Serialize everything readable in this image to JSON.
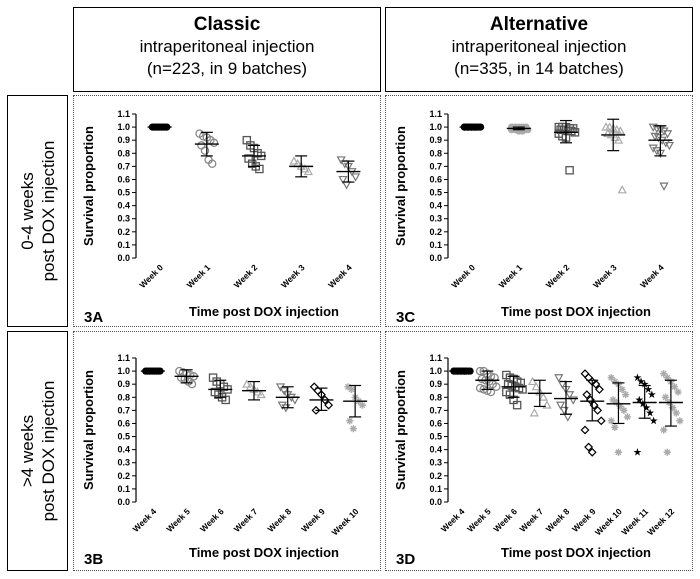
{
  "headers": {
    "classic": {
      "title": "Classic",
      "line1": "intraperitoneal injection",
      "line2": "(n=223, in 9 batches)"
    },
    "alternative": {
      "title": "Alternative",
      "line1": "intraperitoneal injection",
      "line2": "(n=335, in 14 batches)"
    }
  },
  "row_labels": {
    "top": {
      "line1": "0-4 weeks",
      "line2": "post DOX injection"
    },
    "bottom": {
      "line1": ">4 weeks",
      "line2": "post DOX injection"
    }
  },
  "chart_data": [
    {
      "id": "3A",
      "type": "scatter",
      "ylabel": "Survival proportion",
      "xlabel": "Time post DOX injection",
      "ylim": [
        0,
        1.1
      ],
      "yticks": [
        "0.0",
        "0.1",
        "0.2",
        "0.3",
        "0.4",
        "0.5",
        "0.6",
        "0.7",
        "0.8",
        "0.9",
        "1.0",
        "1.1"
      ],
      "categories": [
        "Week 0",
        "Week 1",
        "Week 2",
        "Week 3",
        "Week 4"
      ],
      "groups": [
        {
          "marker": "circle-filled",
          "color": "#000000",
          "mean": 1.0,
          "sd_low": 1.0,
          "sd_high": 1.0,
          "points": [
            1,
            1,
            1,
            1,
            1,
            1,
            1,
            1,
            1
          ]
        },
        {
          "marker": "circle-open",
          "color": "#888888",
          "mean": 0.87,
          "sd_low": 0.78,
          "sd_high": 0.96,
          "points": [
            0.95,
            0.93,
            0.92,
            0.9,
            0.88,
            0.86,
            0.82,
            0.75,
            0.72
          ]
        },
        {
          "marker": "square-open",
          "color": "#555555",
          "mean": 0.78,
          "sd_low": 0.7,
          "sd_high": 0.86,
          "points": [
            0.9,
            0.86,
            0.84,
            0.8,
            0.78,
            0.76,
            0.72,
            0.7,
            0.68
          ]
        },
        {
          "marker": "triangle-open",
          "color": "#aaaaaa",
          "mean": 0.7,
          "sd_low": 0.62,
          "sd_high": 0.78,
          "points": [
            0.74,
            0.72,
            0.7,
            0.68,
            0.66
          ]
        },
        {
          "marker": "triangle-down-open",
          "color": "#777777",
          "mean": 0.66,
          "sd_low": 0.58,
          "sd_high": 0.74,
          "points": [
            0.75,
            0.72,
            0.7,
            0.66,
            0.62,
            0.6,
            0.56
          ]
        }
      ]
    },
    {
      "id": "3C",
      "type": "scatter",
      "ylabel": "Survival proportion",
      "xlabel": "Time post DOX injection",
      "ylim": [
        0,
        1.1
      ],
      "yticks": [
        "0.0",
        "0.1",
        "0.2",
        "0.3",
        "0.4",
        "0.5",
        "0.6",
        "0.7",
        "0.8",
        "0.9",
        "1.0",
        "1.1"
      ],
      "categories": [
        "Week 0",
        "Week 1",
        "Week 2",
        "Week 3",
        "Week 4"
      ],
      "groups": [
        {
          "marker": "circle-filled",
          "color": "#000000",
          "mean": 1.0,
          "sd_low": 1.0,
          "sd_high": 1.0,
          "points": [
            1,
            1,
            1,
            1,
            1,
            1,
            1,
            1,
            1,
            1,
            1,
            1,
            1,
            1
          ]
        },
        {
          "marker": "circle-filled",
          "color": "#aaaaaa",
          "mean": 0.99,
          "sd_low": 0.98,
          "sd_high": 1.0,
          "points": [
            1,
            1,
            1,
            1,
            1,
            0.99,
            0.99,
            0.99,
            0.98,
            0.98,
            0.98,
            0.98,
            0.97,
            0.97
          ]
        },
        {
          "marker": "square-open",
          "color": "#555555",
          "mean": 0.96,
          "sd_low": 0.88,
          "sd_high": 1.05,
          "points": [
            1,
            1,
            1,
            0.99,
            0.99,
            0.98,
            0.98,
            0.97,
            0.97,
            0.96,
            0.95,
            0.93,
            0.92,
            0.67
          ]
        },
        {
          "marker": "triangle-open",
          "color": "#aaaaaa",
          "mean": 0.94,
          "sd_low": 0.82,
          "sd_high": 1.06,
          "points": [
            1,
            1,
            0.99,
            0.98,
            0.97,
            0.95,
            0.94,
            0.92,
            0.9,
            0.52
          ]
        },
        {
          "marker": "triangle-down-open",
          "color": "#777777",
          "mean": 0.9,
          "sd_low": 0.78,
          "sd_high": 1.01,
          "points": [
            1,
            0.99,
            0.98,
            0.97,
            0.95,
            0.93,
            0.92,
            0.9,
            0.88,
            0.86,
            0.84,
            0.82,
            0.8,
            0.55
          ]
        }
      ]
    },
    {
      "id": "3B",
      "type": "scatter",
      "ylabel": "Survival proportion",
      "xlabel": "Time post DOX injection",
      "ylim": [
        0,
        1.1
      ],
      "yticks": [
        "0.0",
        "0.1",
        "0.2",
        "0.3",
        "0.4",
        "0.5",
        "0.6",
        "0.7",
        "0.8",
        "0.9",
        "1.0",
        "1.1"
      ],
      "categories": [
        "Week 4",
        "Week 5",
        "Week 6",
        "Week 7",
        "Week 8",
        "Week 9",
        "Week 10"
      ],
      "groups": [
        {
          "marker": "circle-filled",
          "color": "#000000",
          "mean": 1.0,
          "sd_low": 1.0,
          "sd_high": 1.0,
          "points": [
            1,
            1,
            1,
            1,
            1,
            1,
            1,
            1,
            1
          ]
        },
        {
          "marker": "circle-open",
          "color": "#888888",
          "mean": 0.96,
          "sd_low": 0.91,
          "sd_high": 1.01,
          "points": [
            1,
            0.99,
            0.98,
            0.97,
            0.96,
            0.95,
            0.94,
            0.92,
            0.9
          ]
        },
        {
          "marker": "square-open",
          "color": "#555555",
          "mean": 0.86,
          "sd_low": 0.8,
          "sd_high": 0.93,
          "points": [
            0.95,
            0.92,
            0.9,
            0.88,
            0.86,
            0.84,
            0.82,
            0.8,
            0.78
          ]
        },
        {
          "marker": "triangle-open",
          "color": "#aaaaaa",
          "mean": 0.85,
          "sd_low": 0.78,
          "sd_high": 0.92,
          "points": [
            0.9,
            0.88,
            0.86,
            0.84,
            0.82
          ]
        },
        {
          "marker": "triangle-down-open",
          "color": "#777777",
          "mean": 0.8,
          "sd_low": 0.72,
          "sd_high": 0.88,
          "points": [
            0.88,
            0.85,
            0.82,
            0.8,
            0.78,
            0.74,
            0.72
          ]
        },
        {
          "marker": "diamond-open",
          "color": "#000000",
          "mean": 0.78,
          "sd_low": 0.7,
          "sd_high": 0.87,
          "points": [
            0.88,
            0.85,
            0.82,
            0.78,
            0.74,
            0.7
          ]
        },
        {
          "marker": "asterisk",
          "color": "#aaaaaa",
          "mean": 0.77,
          "sd_low": 0.65,
          "sd_high": 0.89,
          "points": [
            0.88,
            0.86,
            0.8,
            0.77,
            0.74,
            0.62,
            0.56
          ]
        }
      ]
    },
    {
      "id": "3D",
      "type": "scatter",
      "ylabel": "Survival proportion",
      "xlabel": "Time post DOX injection",
      "ylim": [
        0,
        1.1
      ],
      "yticks": [
        "0.0",
        "0.1",
        "0.2",
        "0.3",
        "0.4",
        "0.5",
        "0.6",
        "0.7",
        "0.8",
        "0.9",
        "1.0",
        "1.1"
      ],
      "categories": [
        "Week 4",
        "Week 5",
        "Week 6",
        "Week 7",
        "Week 8",
        "Week 9",
        "Week 10",
        "Week 11",
        "Week 12"
      ],
      "groups": [
        {
          "marker": "circle-filled",
          "color": "#000000",
          "mean": 1.0,
          "sd_low": 1.0,
          "sd_high": 1.0,
          "points": [
            1,
            1,
            1,
            1,
            1,
            1,
            1,
            1,
            1,
            1,
            1,
            1,
            1,
            1
          ]
        },
        {
          "marker": "circle-open",
          "color": "#888888",
          "mean": 0.93,
          "sd_low": 0.86,
          "sd_high": 1.0,
          "points": [
            1,
            1,
            0.98,
            0.96,
            0.95,
            0.94,
            0.93,
            0.92,
            0.9,
            0.88,
            0.87,
            0.86,
            0.85,
            0.84
          ]
        },
        {
          "marker": "square-open",
          "color": "#555555",
          "mean": 0.88,
          "sd_low": 0.8,
          "sd_high": 0.96,
          "points": [
            0.97,
            0.95,
            0.94,
            0.92,
            0.91,
            0.9,
            0.89,
            0.88,
            0.87,
            0.86,
            0.84,
            0.82,
            0.78,
            0.74
          ]
        },
        {
          "marker": "triangle-open",
          "color": "#aaaaaa",
          "mean": 0.83,
          "sd_low": 0.73,
          "sd_high": 0.93,
          "points": [
            0.92,
            0.88,
            0.84,
            0.8,
            0.74,
            0.68
          ]
        },
        {
          "marker": "triangle-down-open",
          "color": "#777777",
          "mean": 0.79,
          "sd_low": 0.67,
          "sd_high": 0.92,
          "points": [
            0.95,
            0.9,
            0.86,
            0.82,
            0.78,
            0.74,
            0.7,
            0.65
          ]
        },
        {
          "marker": "diamond-open",
          "color": "#000000",
          "mean": 0.77,
          "sd_low": 0.62,
          "sd_high": 0.93,
          "points": [
            0.98,
            0.95,
            0.92,
            0.9,
            0.86,
            0.82,
            0.78,
            0.74,
            0.7,
            0.62,
            0.55,
            0.42,
            0.38
          ]
        },
        {
          "marker": "asterisk",
          "color": "#aaaaaa",
          "mean": 0.75,
          "sd_low": 0.6,
          "sd_high": 0.91,
          "points": [
            0.95,
            0.92,
            0.9,
            0.86,
            0.82,
            0.78,
            0.76,
            0.73,
            0.7,
            0.65,
            0.62,
            0.57,
            0.38
          ]
        },
        {
          "marker": "star-filled",
          "color": "#000000",
          "mean": 0.76,
          "sd_low": 0.64,
          "sd_high": 0.89,
          "points": [
            0.95,
            0.92,
            0.9,
            0.86,
            0.82,
            0.78,
            0.75,
            0.72,
            0.68,
            0.62,
            0.38
          ]
        },
        {
          "marker": "asterisk",
          "color": "#aaaaaa",
          "mean": 0.76,
          "sd_low": 0.58,
          "sd_high": 0.93,
          "points": [
            0.98,
            0.95,
            0.92,
            0.88,
            0.84,
            0.8,
            0.76,
            0.72,
            0.68,
            0.62,
            0.55,
            0.38
          ]
        }
      ]
    }
  ]
}
